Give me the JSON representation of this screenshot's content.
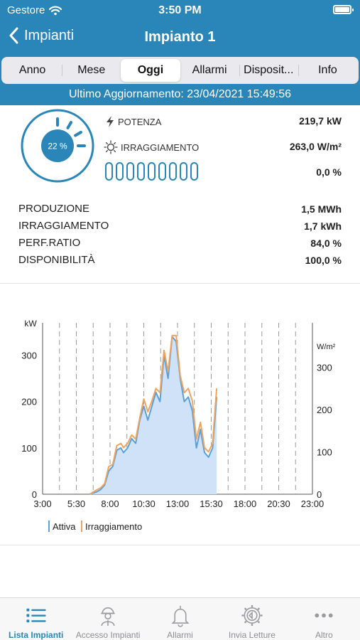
{
  "status": {
    "carrier": "Gestore",
    "time": "3:50 PM"
  },
  "nav": {
    "back_label": "Impianti",
    "title": "Impianto 1"
  },
  "segments": [
    {
      "label": "Anno",
      "active": false
    },
    {
      "label": "Mese",
      "active": false
    },
    {
      "label": "Oggi",
      "active": true
    },
    {
      "label": "Allarmi",
      "active": false
    },
    {
      "label": "Disposit...",
      "active": false
    },
    {
      "label": "Info",
      "active": false
    }
  ],
  "update": {
    "text": "Ultimo Aggiornamento: 23/04/2021 15:49:56"
  },
  "summary": {
    "gauge_label": "22 %",
    "gauge_fraction": 0.22,
    "potenza_label": "POTENZA",
    "potenza_value": "219,7 kW",
    "irraggiamento_label": "IRRAGGIAMENTO",
    "irraggiamento_value": "263,0 W/m²",
    "digits_value": "0,0 %"
  },
  "stats": [
    {
      "label": "PRODUZIONE",
      "value": "1,5 MWh"
    },
    {
      "label": "IRRAGGIAMENTO",
      "value": "1,7 kWh"
    },
    {
      "label": "PERF.RATIO",
      "value": "84,0 %"
    },
    {
      "label": "DISPONIBILITÀ",
      "value": "100,0 %"
    }
  ],
  "chart_data": {
    "type": "area",
    "ylabel": "kW",
    "y2label": "W/m²",
    "x_ticks": [
      "3:00",
      "5:30",
      "8:00",
      "10:30",
      "13:00",
      "15:30",
      "18:00",
      "20:30",
      "23:00"
    ],
    "y_ticks": [
      "0",
      "100",
      "200",
      "300"
    ],
    "y2_ticks": [
      "0",
      "100",
      "200",
      "300"
    ],
    "ylim": [
      0,
      370
    ],
    "y2lim": [
      0,
      405
    ],
    "xlim_hours": [
      3,
      23
    ],
    "grid": "vertical-dashed",
    "legend": "bottom-left",
    "series": [
      {
        "name": "Attiva",
        "color": "#5aa0dc",
        "fill": "#cfe2f7",
        "x": [
          6.5,
          7.0,
          7.3,
          7.6,
          7.9,
          8.2,
          8.5,
          8.8,
          9.0,
          9.3,
          9.6,
          9.9,
          10.2,
          10.5,
          10.8,
          11.1,
          11.4,
          11.7,
          12.0,
          12.3,
          12.6,
          12.9,
          13.2,
          13.5,
          13.8,
          14.1,
          14.4,
          14.7,
          15.0,
          15.3,
          15.6,
          15.9
        ],
        "values": [
          0,
          5,
          10,
          20,
          50,
          60,
          95,
          100,
          90,
          100,
          120,
          110,
          160,
          190,
          160,
          190,
          220,
          200,
          300,
          250,
          340,
          330,
          250,
          200,
          210,
          180,
          100,
          140,
          90,
          80,
          100,
          210
        ]
      },
      {
        "name": "Irraggiamento",
        "color": "#f0a35c",
        "x": [
          6.5,
          7.0,
          7.3,
          7.6,
          7.9,
          8.2,
          8.5,
          8.8,
          9.0,
          9.3,
          9.6,
          9.9,
          10.2,
          10.5,
          10.8,
          11.1,
          11.4,
          11.7,
          12.0,
          12.3,
          12.6,
          12.9,
          13.2,
          13.5,
          13.8,
          14.1,
          14.4,
          14.7,
          15.0,
          15.3,
          15.6,
          15.9
        ],
        "values": [
          0,
          10,
          15,
          25,
          65,
          70,
          115,
          120,
          110,
          120,
          140,
          130,
          180,
          225,
          195,
          220,
          250,
          240,
          340,
          290,
          375,
          375,
          280,
          240,
          250,
          220,
          130,
          170,
          110,
          100,
          120,
          250
        ]
      }
    ]
  },
  "tabs": [
    {
      "label": "Lista Impianti",
      "icon": "list-icon",
      "active": true
    },
    {
      "label": "Accesso Impianti",
      "icon": "worker-icon",
      "active": false
    },
    {
      "label": "Allarmi",
      "icon": "bell-icon",
      "active": false
    },
    {
      "label": "Invia Letture",
      "icon": "gear-icon",
      "active": false
    },
    {
      "label": "Altro",
      "icon": "more-icon",
      "active": false
    }
  ]
}
